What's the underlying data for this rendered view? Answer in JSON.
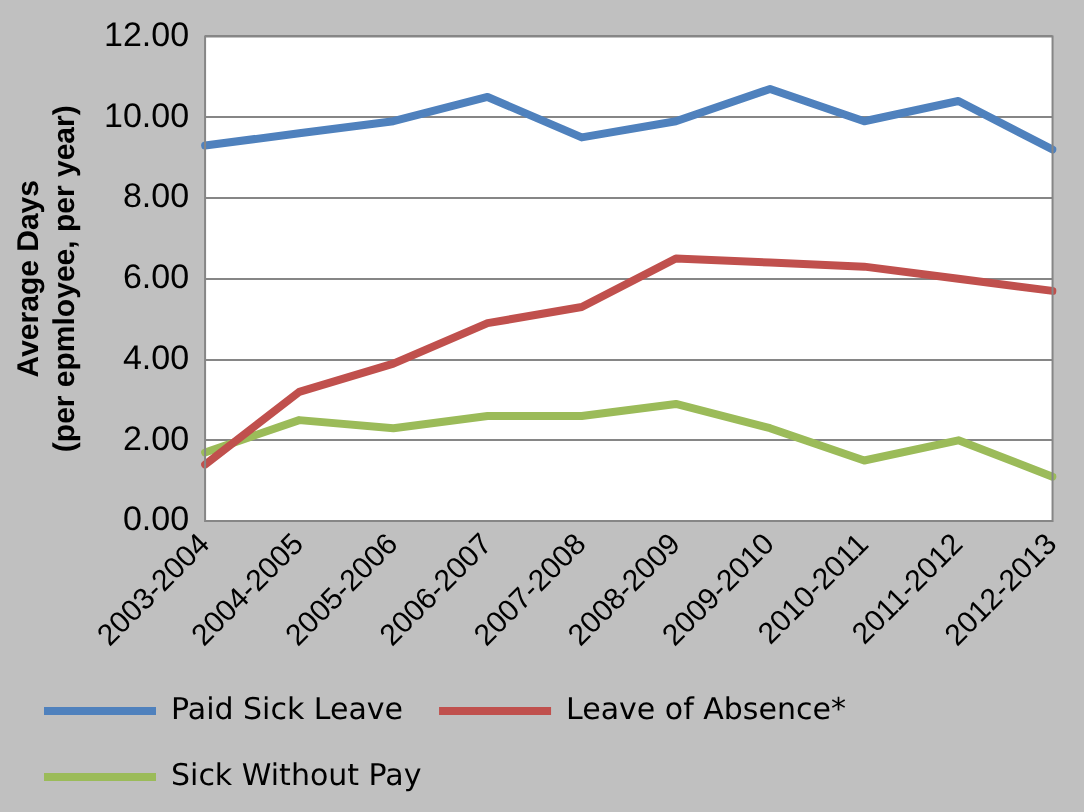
{
  "chart_data": {
    "type": "line",
    "ylabel": "Average Days\n(per epmloyee, per year)",
    "categories": [
      "2003-2004",
      "2004-2005",
      "2005-2006",
      "2006-2007",
      "2007-2008",
      "2008-2009",
      "2009-2010",
      "2010-2011",
      "2011-2012",
      "2012-2013"
    ],
    "series": [
      {
        "name": "Paid Sick Leave",
        "color": "#4f81bd",
        "values": [
          9.3,
          9.6,
          9.9,
          10.5,
          9.5,
          9.9,
          10.7,
          9.9,
          10.4,
          9.2
        ]
      },
      {
        "name": "Leave of Absence*",
        "color": "#c0504d",
        "values": [
          1.4,
          3.2,
          3.9,
          4.9,
          5.3,
          6.5,
          6.4,
          6.3,
          6.0,
          5.7
        ]
      },
      {
        "name": "Sick Without Pay",
        "color": "#9bbb59",
        "values": [
          1.7,
          2.5,
          2.3,
          2.6,
          2.6,
          2.9,
          2.3,
          1.5,
          2.0,
          1.1
        ]
      }
    ],
    "ylim": [
      0,
      12
    ],
    "yticks": [
      {
        "value": 0,
        "label": "0.00"
      },
      {
        "value": 2,
        "label": "2.00"
      },
      {
        "value": 4,
        "label": "4.00"
      },
      {
        "value": 6,
        "label": "6.00"
      },
      {
        "value": 8,
        "label": "8.00"
      },
      {
        "value": 10,
        "label": "10.00"
      },
      {
        "value": 12,
        "label": "12.00"
      }
    ],
    "grid": "y",
    "legend": "bottom",
    "marker": "none",
    "line_style": "solid"
  }
}
